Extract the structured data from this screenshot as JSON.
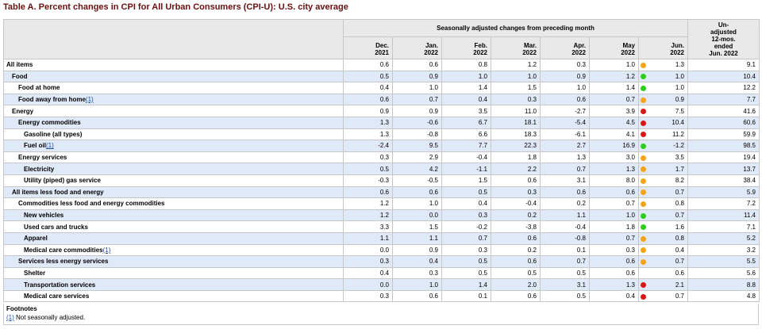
{
  "title": "Table A. Percent changes in CPI for All Urban Consumers (CPI-U): U.S. city average",
  "header": {
    "group_label": "Seasonally adjusted changes from preceding month",
    "months": [
      {
        "mon": "Dec.",
        "year": "2021"
      },
      {
        "mon": "Jan.",
        "year": "2022"
      },
      {
        "mon": "Feb.",
        "year": "2022"
      },
      {
        "mon": "Mar.",
        "year": "2022"
      },
      {
        "mon": "Apr.",
        "year": "2022"
      },
      {
        "mon": "May",
        "year": "2022"
      },
      {
        "mon": "Jun.",
        "year": "2022"
      }
    ],
    "unadjusted_label": [
      "Un-",
      "adjusted",
      "12-mos.",
      "ended",
      "Jun. 2022"
    ]
  },
  "colors": {
    "title": "#6b1010",
    "row_highlight": "#dfe9f7",
    "header_bg": "#e9e9e9",
    "dot_orange": "#f5a31a",
    "dot_green": "#2ecc1c",
    "dot_red": "#d81818"
  },
  "rows": [
    {
      "label": "All items",
      "indent": 0,
      "fn": "",
      "values": [
        "0.6",
        "0.6",
        "0.8",
        "1.2",
        "0.3",
        "1.0",
        "1.3"
      ],
      "dot": "orange",
      "unadjusted": "9.1"
    },
    {
      "label": "Food",
      "indent": 1,
      "fn": "",
      "values": [
        "0.5",
        "0.9",
        "1.0",
        "1.0",
        "0.9",
        "1.2",
        "1.0"
      ],
      "dot": "green",
      "unadjusted": "10.4"
    },
    {
      "label": "Food at home",
      "indent": 2,
      "fn": "",
      "values": [
        "0.4",
        "1.0",
        "1.4",
        "1.5",
        "1.0",
        "1.4",
        "1.0"
      ],
      "dot": "green",
      "unadjusted": "12.2"
    },
    {
      "label": "Food away from home",
      "indent": 2,
      "fn": "(1)",
      "values": [
        "0.6",
        "0.7",
        "0.4",
        "0.3",
        "0.6",
        "0.7",
        "0.9"
      ],
      "dot": "orange",
      "unadjusted": "7.7"
    },
    {
      "label": "Energy",
      "indent": 1,
      "fn": "",
      "values": [
        "0.9",
        "0.9",
        "3.5",
        "11.0",
        "-2.7",
        "3.9",
        "7.5"
      ],
      "dot": "red",
      "unadjusted": "41.6"
    },
    {
      "label": "Energy commodities",
      "indent": 2,
      "fn": "",
      "values": [
        "1.3",
        "-0.6",
        "6.7",
        "18.1",
        "-5.4",
        "4.5",
        "10.4"
      ],
      "dot": "red",
      "unadjusted": "60.6"
    },
    {
      "label": "Gasoline (all types)",
      "indent": 3,
      "fn": "",
      "values": [
        "1.3",
        "-0.8",
        "6.6",
        "18.3",
        "-6.1",
        "4.1",
        "11.2"
      ],
      "dot": "red",
      "unadjusted": "59.9"
    },
    {
      "label": "Fuel oil",
      "indent": 3,
      "fn": "(1)",
      "values": [
        "-2.4",
        "9.5",
        "7.7",
        "22.3",
        "2.7",
        "16.9",
        "-1.2"
      ],
      "dot": "green",
      "unadjusted": "98.5"
    },
    {
      "label": "Energy services",
      "indent": 2,
      "fn": "",
      "values": [
        "0.3",
        "2.9",
        "-0.4",
        "1.8",
        "1.3",
        "3.0",
        "3.5"
      ],
      "dot": "orange",
      "unadjusted": "19.4"
    },
    {
      "label": "Electricity",
      "indent": 3,
      "fn": "",
      "values": [
        "0.5",
        "4.2",
        "-1.1",
        "2.2",
        "0.7",
        "1.3",
        "1.7"
      ],
      "dot": "orange",
      "unadjusted": "13.7"
    },
    {
      "label": "Utility (piped) gas service",
      "indent": 3,
      "fn": "",
      "values": [
        "-0.3",
        "-0.5",
        "1.5",
        "0.6",
        "3.1",
        "8.0",
        "8.2"
      ],
      "dot": "orange",
      "unadjusted": "38.4"
    },
    {
      "label": "All items less food and energy",
      "indent": 1,
      "fn": "",
      "values": [
        "0.6",
        "0.6",
        "0.5",
        "0.3",
        "0.6",
        "0.6",
        "0.7"
      ],
      "dot": "orange",
      "unadjusted": "5.9"
    },
    {
      "label": "Commodities less food and energy commodities",
      "indent": 2,
      "fn": "",
      "values": [
        "1.2",
        "1.0",
        "0.4",
        "-0.4",
        "0.2",
        "0.7",
        "0.8"
      ],
      "dot": "orange",
      "unadjusted": "7.2"
    },
    {
      "label": "New vehicles",
      "indent": 3,
      "fn": "",
      "values": [
        "1.2",
        "0.0",
        "0.3",
        "0.2",
        "1.1",
        "1.0",
        "0.7"
      ],
      "dot": "green",
      "unadjusted": "11.4"
    },
    {
      "label": "Used cars and trucks",
      "indent": 3,
      "fn": "",
      "values": [
        "3.3",
        "1.5",
        "-0.2",
        "-3.8",
        "-0.4",
        "1.8",
        "1.6"
      ],
      "dot": "green",
      "unadjusted": "7.1"
    },
    {
      "label": "Apparel",
      "indent": 3,
      "fn": "",
      "values": [
        "1.1",
        "1.1",
        "0.7",
        "0.6",
        "-0.8",
        "0.7",
        "0.8"
      ],
      "dot": "orange",
      "unadjusted": "5.2"
    },
    {
      "label": "Medical care commodities",
      "indent": 3,
      "fn": "(1)",
      "values": [
        "0.0",
        "0.9",
        "0.3",
        "0.2",
        "0.1",
        "0.3",
        "0.4"
      ],
      "dot": "orange",
      "unadjusted": "3.2"
    },
    {
      "label": "Services less energy services",
      "indent": 2,
      "fn": "",
      "values": [
        "0.3",
        "0.4",
        "0.5",
        "0.6",
        "0.7",
        "0.6",
        "0.7"
      ],
      "dot": "orange",
      "unadjusted": "5.5"
    },
    {
      "label": "Shelter",
      "indent": 3,
      "fn": "",
      "values": [
        "0.4",
        "0.3",
        "0.5",
        "0.5",
        "0.5",
        "0.6",
        "0.6"
      ],
      "dot": "",
      "unadjusted": "5.6"
    },
    {
      "label": "Transportation services",
      "indent": 3,
      "fn": "",
      "values": [
        "0.0",
        "1.0",
        "1.4",
        "2.0",
        "3.1",
        "1.3",
        "2.1"
      ],
      "dot": "red",
      "unadjusted": "8.8"
    },
    {
      "label": "Medical care services",
      "indent": 3,
      "fn": "",
      "values": [
        "0.3",
        "0.6",
        "0.1",
        "0.6",
        "0.5",
        "0.4",
        "0.7"
      ],
      "dot": "red",
      "unadjusted": "4.8"
    }
  ],
  "footnotes": {
    "heading": "Footnotes",
    "items": [
      {
        "marker": "(1)",
        "text": " Not seasonally adjusted."
      }
    ]
  }
}
